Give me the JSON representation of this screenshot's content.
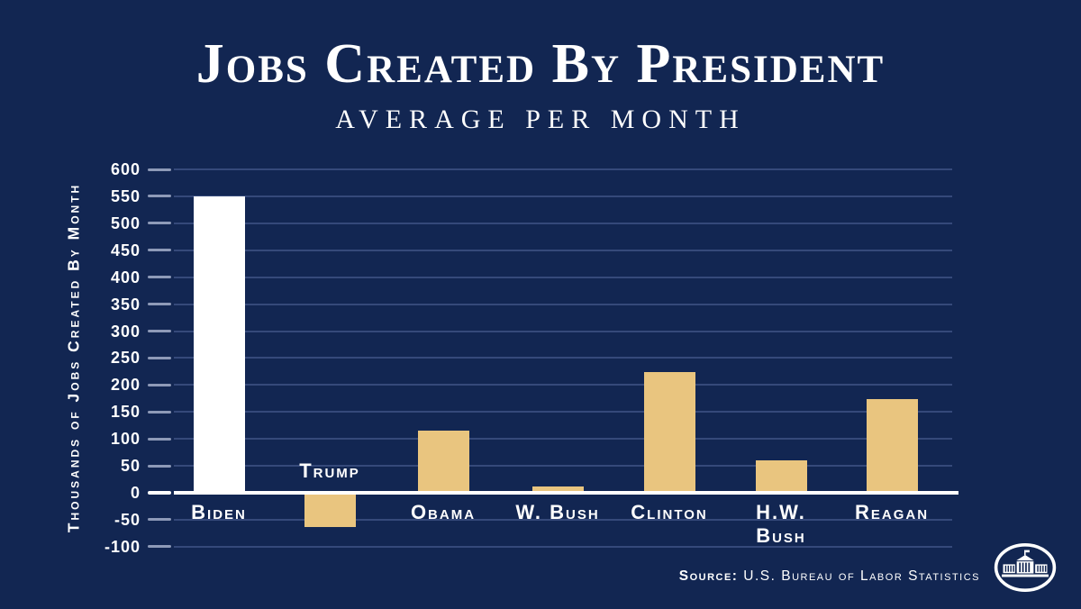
{
  "header": {
    "title": "Jobs Created By President",
    "subtitle": "Average Per Month"
  },
  "source": {
    "label": "Source:",
    "text": "U.S. Bureau of Labor Statistics"
  },
  "logo": {
    "name": "white-house-logo"
  },
  "colors": {
    "background": "#122652",
    "bar_gold": "#e9c57f",
    "bar_white": "#ffffff",
    "gridline": "#35497a",
    "tick": "#8e9ab8",
    "axis_line": "#ffffff",
    "text": "#ffffff"
  },
  "chart_data": {
    "type": "bar",
    "title": "Jobs Created By President",
    "subtitle": "Average Per Month",
    "xlabel": "",
    "ylabel": "Thousands of Jobs Created By Month",
    "categories": [
      "Biden",
      "Trump",
      "Obama",
      "W. Bush",
      "Clinton",
      "H.W. Bush",
      "Reagan"
    ],
    "category_lines": [
      [
        "Biden"
      ],
      [
        "Trump"
      ],
      [
        "Obama"
      ],
      [
        "W. Bush"
      ],
      [
        "Clinton"
      ],
      [
        "H.W.",
        "Bush"
      ],
      [
        "Reagan"
      ]
    ],
    "values": [
      550,
      -63,
      116,
      12,
      224,
      61,
      173
    ],
    "bar_colors": [
      "#ffffff",
      "#e9c57f",
      "#e9c57f",
      "#e9c57f",
      "#e9c57f",
      "#e9c57f",
      "#e9c57f"
    ],
    "ylim": [
      -100,
      600
    ],
    "yticks": [
      600,
      550,
      500,
      450,
      400,
      350,
      300,
      250,
      200,
      150,
      100,
      50,
      0,
      -50,
      -100
    ],
    "grid": true,
    "legend": null,
    "source": "Source: U.S. Bureau of Labor Statistics"
  }
}
